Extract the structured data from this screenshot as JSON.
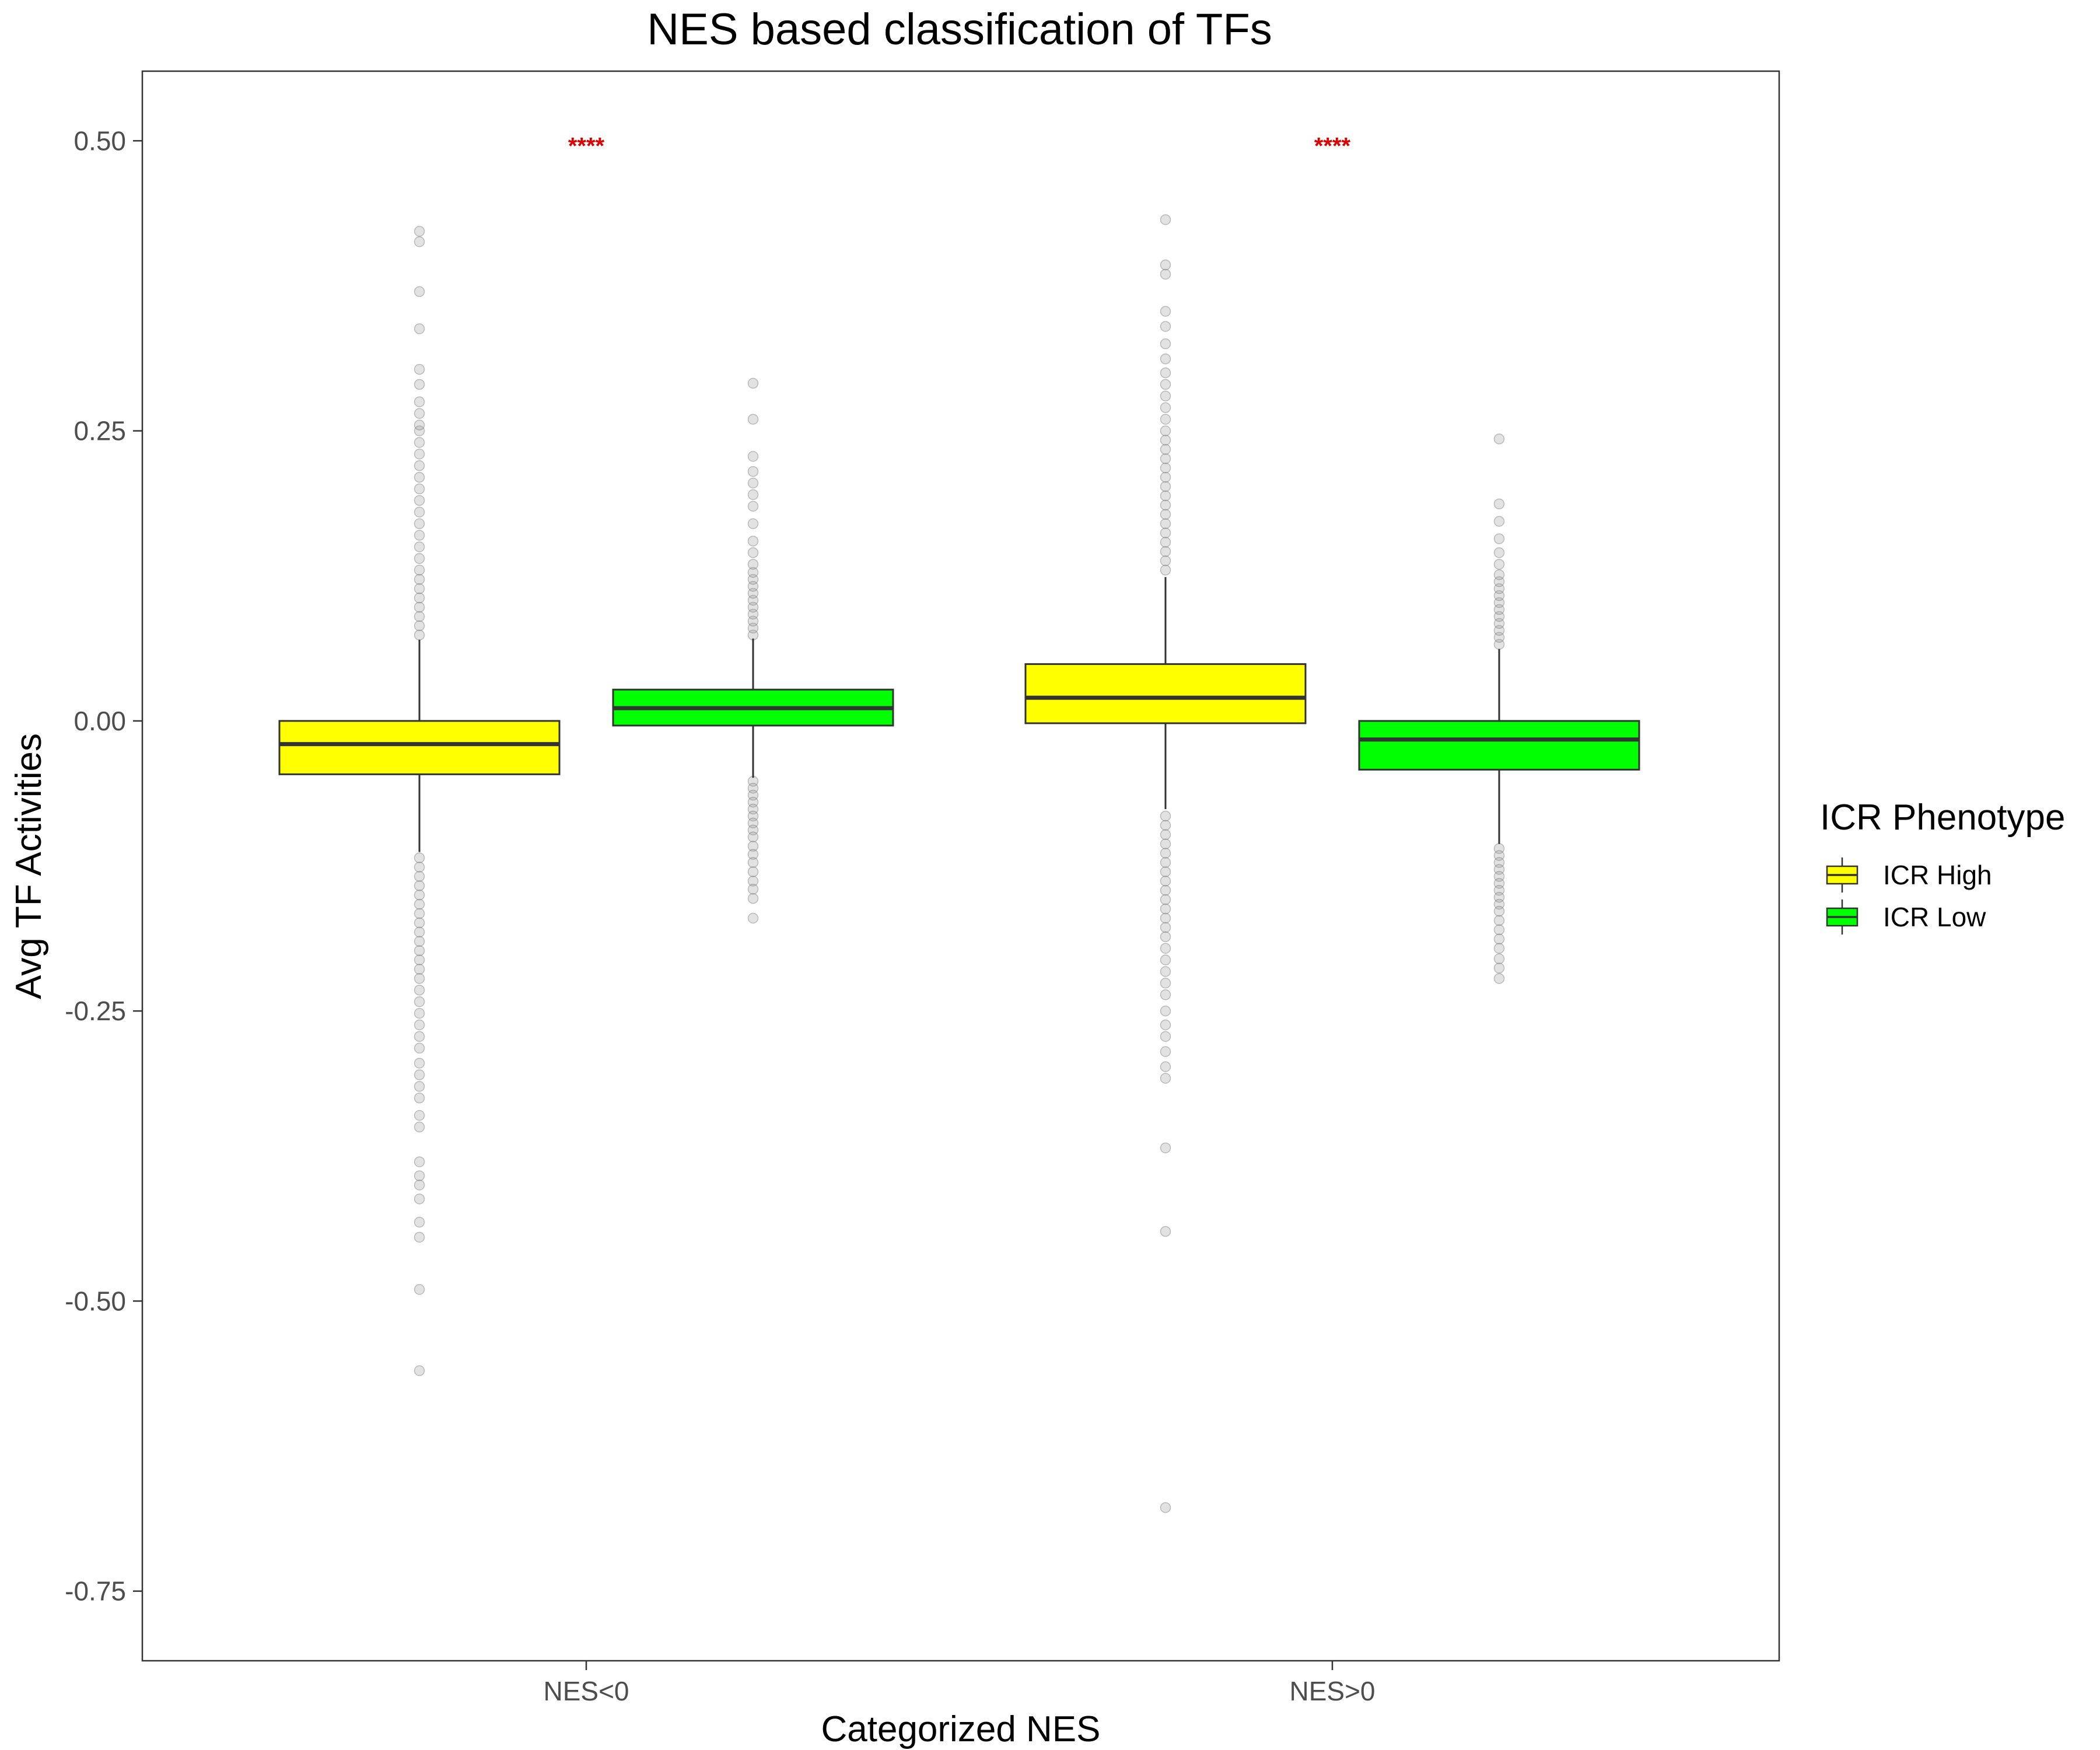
{
  "chart_data": {
    "type": "box",
    "title": "NES based classification of TFs",
    "xlabel": "Categorized NES",
    "ylabel": "Avg TF Activities",
    "categories": [
      "NES<0",
      "NES>0"
    ],
    "ylim": [
      -0.81,
      0.56
    ],
    "y_ticks": [
      -0.75,
      -0.5,
      -0.25,
      0.0,
      0.25,
      0.5
    ],
    "y_tick_labels": [
      "-0.75",
      "-0.50",
      "-0.25",
      "0.00",
      "0.25",
      "0.50"
    ],
    "grid": false,
    "legend": {
      "title": "ICR Phenotype",
      "position": "right",
      "entries": [
        "ICR High",
        "ICR Low"
      ]
    },
    "significance": [
      {
        "category": "NES<0",
        "label": "****",
        "y": 0.5,
        "color": "#dd0000"
      },
      {
        "category": "NES>0",
        "label": "****",
        "y": 0.5,
        "color": "#dd0000"
      }
    ],
    "series": [
      {
        "name": "ICR High",
        "color": "#ffff00",
        "boxes": [
          {
            "category": "NES<0",
            "q1": -0.046,
            "median": -0.02,
            "q3": 0.0,
            "whisker_low": -0.113,
            "whisker_high": 0.07,
            "outliers_high": [
              0.074,
              0.082,
              0.09,
              0.098,
              0.106,
              0.114,
              0.122,
              0.13,
              0.14,
              0.15,
              0.16,
              0.17,
              0.18,
              0.19,
              0.2,
              0.21,
              0.22,
              0.23,
              0.24,
              0.25,
              0.255,
              0.265,
              0.275,
              0.29,
              0.303,
              0.338,
              0.37,
              0.413,
              0.422
            ],
            "outliers_low": [
              -0.118,
              -0.126,
              -0.134,
              -0.142,
              -0.15,
              -0.158,
              -0.166,
              -0.174,
              -0.182,
              -0.19,
              -0.198,
              -0.206,
              -0.214,
              -0.222,
              -0.232,
              -0.242,
              -0.252,
              -0.262,
              -0.272,
              -0.282,
              -0.295,
              -0.305,
              -0.315,
              -0.325,
              -0.34,
              -0.35,
              -0.38,
              -0.392,
              -0.4,
              -0.412,
              -0.432,
              -0.445,
              -0.49,
              -0.56
            ]
          },
          {
            "category": "NES>0",
            "q1": -0.002,
            "median": 0.02,
            "q3": 0.049,
            "whisker_low": -0.076,
            "whisker_high": 0.124,
            "outliers_high": [
              0.13,
              0.138,
              0.146,
              0.154,
              0.162,
              0.17,
              0.178,
              0.186,
              0.194,
              0.202,
              0.21,
              0.218,
              0.226,
              0.234,
              0.242,
              0.25,
              0.26,
              0.27,
              0.28,
              0.29,
              0.3,
              0.312,
              0.325,
              0.34,
              0.353,
              0.385,
              0.393,
              0.432
            ],
            "outliers_low": [
              -0.082,
              -0.09,
              -0.098,
              -0.106,
              -0.114,
              -0.122,
              -0.13,
              -0.138,
              -0.146,
              -0.154,
              -0.162,
              -0.17,
              -0.178,
              -0.186,
              -0.196,
              -0.206,
              -0.216,
              -0.226,
              -0.236,
              -0.25,
              -0.262,
              -0.272,
              -0.285,
              -0.298,
              -0.308,
              -0.368,
              -0.44,
              -0.678
            ]
          }
        ]
      },
      {
        "name": "ICR Low",
        "color": "#00ff00",
        "boxes": [
          {
            "category": "NES<0",
            "q1": -0.004,
            "median": 0.011,
            "q3": 0.027,
            "whisker_low": -0.049,
            "whisker_high": 0.071,
            "outliers_high": [
              0.074,
              0.08,
              0.086,
              0.092,
              0.098,
              0.104,
              0.11,
              0.116,
              0.122,
              0.128,
              0.135,
              0.145,
              0.155,
              0.17,
              0.185,
              0.195,
              0.205,
              0.215,
              0.228,
              0.26,
              0.291
            ],
            "outliers_low": [
              -0.052,
              -0.058,
              -0.064,
              -0.07,
              -0.076,
              -0.082,
              -0.088,
              -0.094,
              -0.1,
              -0.108,
              -0.115,
              -0.122,
              -0.13,
              -0.138,
              -0.145,
              -0.153,
              -0.17
            ]
          },
          {
            "category": "NES>0",
            "q1": -0.042,
            "median": -0.016,
            "q3": 0.0,
            "whisker_low": -0.106,
            "whisker_high": 0.062,
            "outliers_high": [
              0.066,
              0.072,
              0.078,
              0.084,
              0.09,
              0.096,
              0.102,
              0.108,
              0.114,
              0.12,
              0.126,
              0.135,
              0.145,
              0.157,
              0.172,
              0.187,
              0.243
            ],
            "outliers_low": [
              -0.11,
              -0.116,
              -0.122,
              -0.128,
              -0.134,
              -0.14,
              -0.146,
              -0.152,
              -0.158,
              -0.164,
              -0.172,
              -0.18,
              -0.188,
              -0.196,
              -0.205,
              -0.213,
              -0.222
            ]
          }
        ]
      }
    ]
  }
}
